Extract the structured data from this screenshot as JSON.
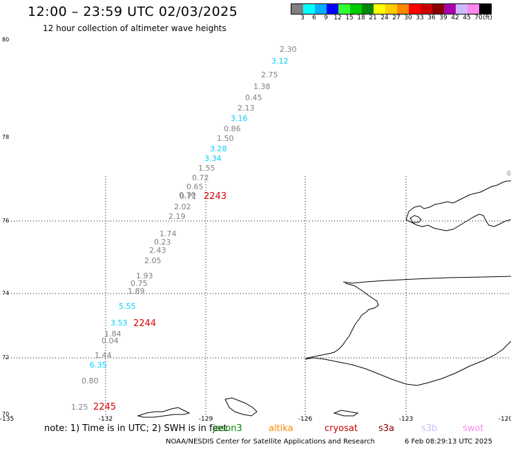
{
  "header": {
    "title": "12:00 – 23:59 UTC 02/03/2025",
    "subtitle": "12 hour collection of altimeter wave heights"
  },
  "color_scale": {
    "colors": [
      "#808080",
      "#00ffff",
      "#00b0ff",
      "#0000ff",
      "#33ff33",
      "#00cc00",
      "#008800",
      "#ffff00",
      "#ffcc00",
      "#ff8800",
      "#ff0000",
      "#cc0000",
      "#880000",
      "#aa00aa",
      "#ccbbff",
      "#ff88ee",
      "#000000"
    ],
    "labels": [
      "3",
      "6",
      "9",
      "12",
      "15",
      "18",
      "21",
      "24",
      "27",
      "30",
      "33",
      "36",
      "39",
      "42",
      "45",
      "70",
      "(ft)"
    ]
  },
  "axes": {
    "lat_labels": [
      "80",
      "78",
      "76",
      "74",
      "72",
      "70"
    ],
    "lon_labels": [
      "-135",
      "-132",
      "-129",
      "-126",
      "-123",
      "-120"
    ],
    "right_edge_label": "0"
  },
  "observations": [
    {
      "value": "2.30",
      "color": "#808080"
    },
    {
      "value": "3.12",
      "color": "#00ccff"
    },
    {
      "value": "2.75",
      "color": "#808080"
    },
    {
      "value": "1.38",
      "color": "#808080"
    },
    {
      "value": "0.45",
      "color": "#808080"
    },
    {
      "value": "2.13",
      "color": "#808080"
    },
    {
      "value": "3.16",
      "color": "#00ccff"
    },
    {
      "value": "0.86",
      "color": "#808080"
    },
    {
      "value": "1.50",
      "color": "#808080"
    },
    {
      "value": "3.28",
      "color": "#00ccff"
    },
    {
      "value": "3.34",
      "color": "#00ccff"
    },
    {
      "value": "1.55",
      "color": "#808080"
    },
    {
      "value": "0.72",
      "color": "#808080"
    },
    {
      "value": "0.65",
      "color": "#808080"
    },
    {
      "value": "0.71",
      "color": "#808080"
    },
    {
      "value": "0.70",
      "color": "#808080"
    },
    {
      "value": "2.02",
      "color": "#808080"
    },
    {
      "value": "2.19",
      "color": "#808080"
    },
    {
      "value": "1.74",
      "color": "#808080"
    },
    {
      "value": "0.23",
      "color": "#808080"
    },
    {
      "value": "2.43",
      "color": "#808080"
    },
    {
      "value": "2.05",
      "color": "#808080"
    },
    {
      "value": "1.93",
      "color": "#808080"
    },
    {
      "value": "0.75",
      "color": "#808080"
    },
    {
      "value": "1.89",
      "color": "#808080"
    },
    {
      "value": "5.55",
      "color": "#00ccff"
    },
    {
      "value": "3.53",
      "color": "#00ccff"
    },
    {
      "value": "1.84",
      "color": "#808080"
    },
    {
      "value": "0.04",
      "color": "#808080"
    },
    {
      "value": "1.44",
      "color": "#808080"
    },
    {
      "value": "6.35",
      "color": "#00ccff"
    },
    {
      "value": "0.80",
      "color": "#808080"
    },
    {
      "value": "1.25",
      "color": "#808080"
    }
  ],
  "time_markers": [
    {
      "label": "2243",
      "color": "#dd0000"
    },
    {
      "label": "2244",
      "color": "#dd0000"
    },
    {
      "label": "2245",
      "color": "#dd0000"
    }
  ],
  "footer": {
    "note": "note: 1) Time is in UTC; 2) SWH is in feet",
    "missions": [
      {
        "name": "jason3",
        "color": "#008800"
      },
      {
        "name": "altika",
        "color": "#ff8800"
      },
      {
        "name": "cryosat",
        "color": "#cc0000"
      },
      {
        "name": "s3a",
        "color": "#880000"
      },
      {
        "name": "s3b",
        "color": "#ccbbff"
      },
      {
        "name": "swot",
        "color": "#ff88ee"
      }
    ],
    "credit": "NOAA/NESDIS Center for Satellite Applications and Research",
    "timestamp": "6 Feb 08:29:13 UTC 2025"
  }
}
